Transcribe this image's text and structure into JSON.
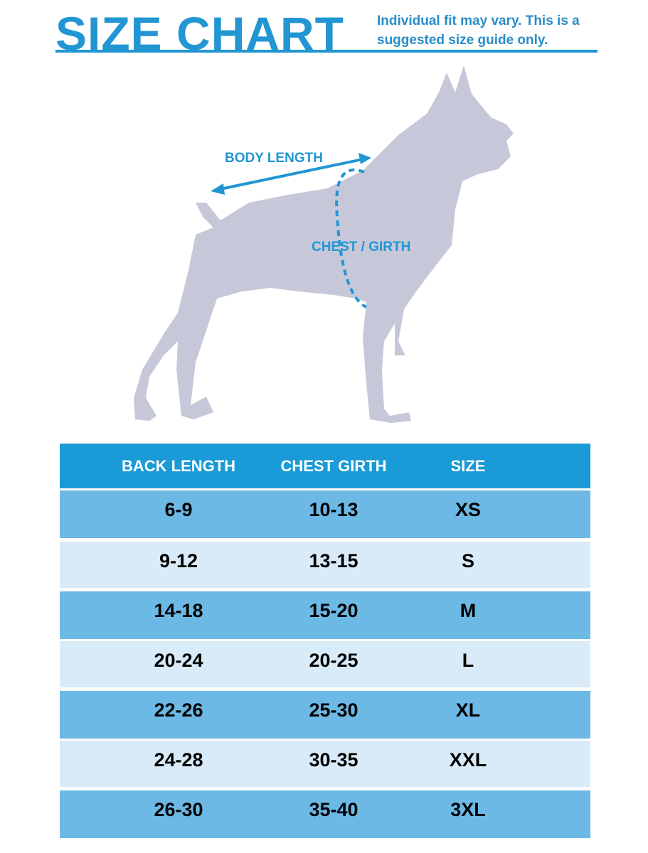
{
  "title": "SIZE CHART",
  "note": "Individual fit may vary. This is a suggested size guide only.",
  "diagram": {
    "body_length": "BODY LENGTH",
    "chest_girth": "CHEST / GIRTH"
  },
  "colors": {
    "accent": "#2196d3",
    "header": "#1a9ad6",
    "row_dark": "#6cb9e5",
    "row_light": "#d9ebf8",
    "dog": "#c6c8d9"
  },
  "table": {
    "headers": [
      "BACK LENGTH",
      "CHEST GIRTH",
      "SIZE"
    ],
    "rows": [
      [
        "6-9",
        "10-13",
        "XS"
      ],
      [
        "9-12",
        "13-15",
        "S"
      ],
      [
        "14-18",
        "15-20",
        "M"
      ],
      [
        "20-24",
        "20-25",
        "L"
      ],
      [
        "22-26",
        "25-30",
        "XL"
      ],
      [
        "24-28",
        "30-35",
        "XXL"
      ],
      [
        "26-30",
        "35-40",
        "3XL"
      ]
    ]
  }
}
